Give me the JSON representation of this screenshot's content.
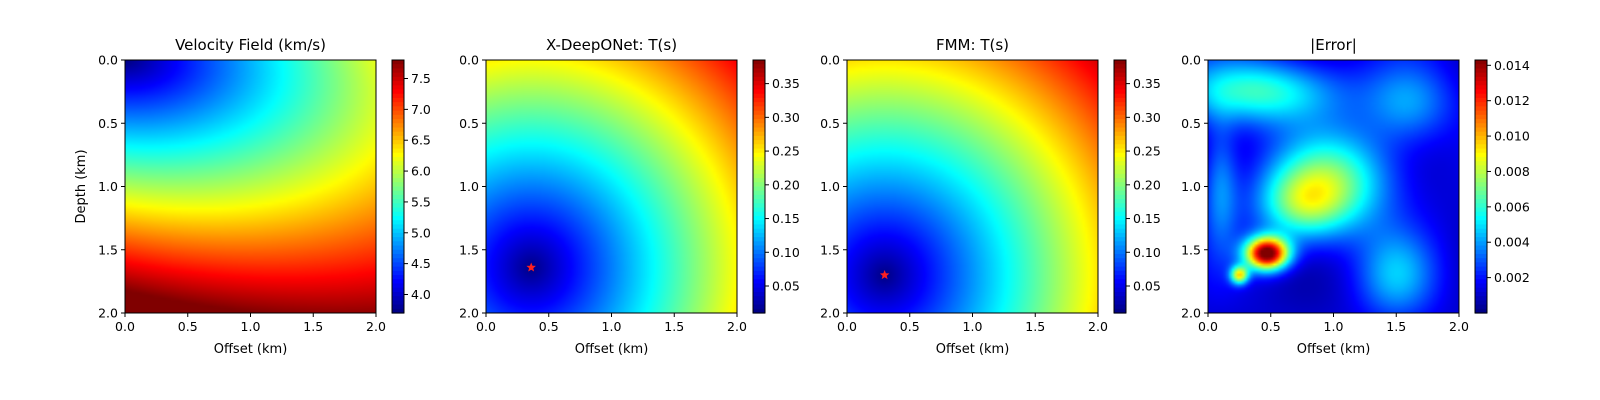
{
  "chart_data": [
    {
      "type": "heatmap",
      "title": "Velocity Field (km/s)",
      "xlabel": "Offset (km)",
      "ylabel": "Depth (km)",
      "xlim": [
        0,
        2
      ],
      "ylim": [
        2,
        0
      ],
      "xticks": [
        "0.0",
        "0.5",
        "1.0",
        "1.5",
        "2.0"
      ],
      "yticks": [
        "0.0",
        "0.5",
        "1.0",
        "1.5",
        "2.0"
      ],
      "colormap": "jet",
      "colorbar": {
        "range": [
          3.7,
          7.8
        ],
        "ticks": [
          "4.0",
          "4.5",
          "5.0",
          "5.5",
          "6.0",
          "6.5",
          "7.0",
          "7.5"
        ]
      },
      "field": {
        "description_values": [
          {
            "x": 0.0,
            "z": 0.0,
            "v": 3.7
          },
          {
            "x": 0.0,
            "z": 1.0,
            "v": 6.0
          },
          {
            "x": 2.0,
            "z": 0.0,
            "v": 5.3
          },
          {
            "x": 1.0,
            "z": 1.0,
            "v": 6.0
          },
          {
            "x": 0.0,
            "z": 2.0,
            "v": 7.8
          },
          {
            "x": 2.0,
            "z": 2.0,
            "v": 6.6
          }
        ]
      }
    },
    {
      "type": "heatmap",
      "title": "X-DeepONet: T(s)",
      "xlabel": "Offset (km)",
      "ylabel": "",
      "xlim": [
        0,
        2
      ],
      "ylim": [
        2,
        0
      ],
      "xticks": [
        "0.0",
        "0.5",
        "1.0",
        "1.5",
        "2.0"
      ],
      "yticks": [
        "0.0",
        "0.5",
        "1.0",
        "1.5",
        "2.0"
      ],
      "colormap": "jet",
      "colorbar": {
        "range": [
          0.01,
          0.385
        ],
        "ticks": [
          "0.05",
          "0.10",
          "0.15",
          "0.20",
          "0.25",
          "0.30",
          "0.35"
        ]
      },
      "source": {
        "x": 0.36,
        "z": 1.64
      },
      "max_value": 0.38
    },
    {
      "type": "heatmap",
      "title": "FMM: T(s)",
      "xlabel": "Offset (km)",
      "ylabel": "",
      "xlim": [
        0,
        2
      ],
      "ylim": [
        2,
        0
      ],
      "xticks": [
        "0.0",
        "0.5",
        "1.0",
        "1.5",
        "2.0"
      ],
      "yticks": [
        "0.0",
        "0.5",
        "1.0",
        "1.5",
        "2.0"
      ],
      "colormap": "jet",
      "colorbar": {
        "range": [
          0.01,
          0.385
        ],
        "ticks": [
          "0.05",
          "0.10",
          "0.15",
          "0.20",
          "0.25",
          "0.30",
          "0.35"
        ]
      },
      "source": {
        "x": 0.3,
        "z": 1.7
      },
      "max_value": 0.38
    },
    {
      "type": "heatmap",
      "title": "|Error|",
      "xlabel": "Offset (km)",
      "ylabel": "",
      "xlim": [
        0,
        2
      ],
      "ylim": [
        2,
        0
      ],
      "xticks": [
        "0.0",
        "0.5",
        "1.0",
        "1.5",
        "2.0"
      ],
      "yticks": [
        "0.0",
        "0.5",
        "1.0",
        "1.5",
        "2.0"
      ],
      "colormap": "jet",
      "colorbar": {
        "range": [
          0.0,
          0.0143
        ],
        "ticks": [
          "0.002",
          "0.004",
          "0.006",
          "0.008",
          "0.010",
          "0.012",
          "0.014"
        ]
      },
      "peak": {
        "x": 0.47,
        "z": 1.53,
        "value": 0.0143
      }
    }
  ]
}
